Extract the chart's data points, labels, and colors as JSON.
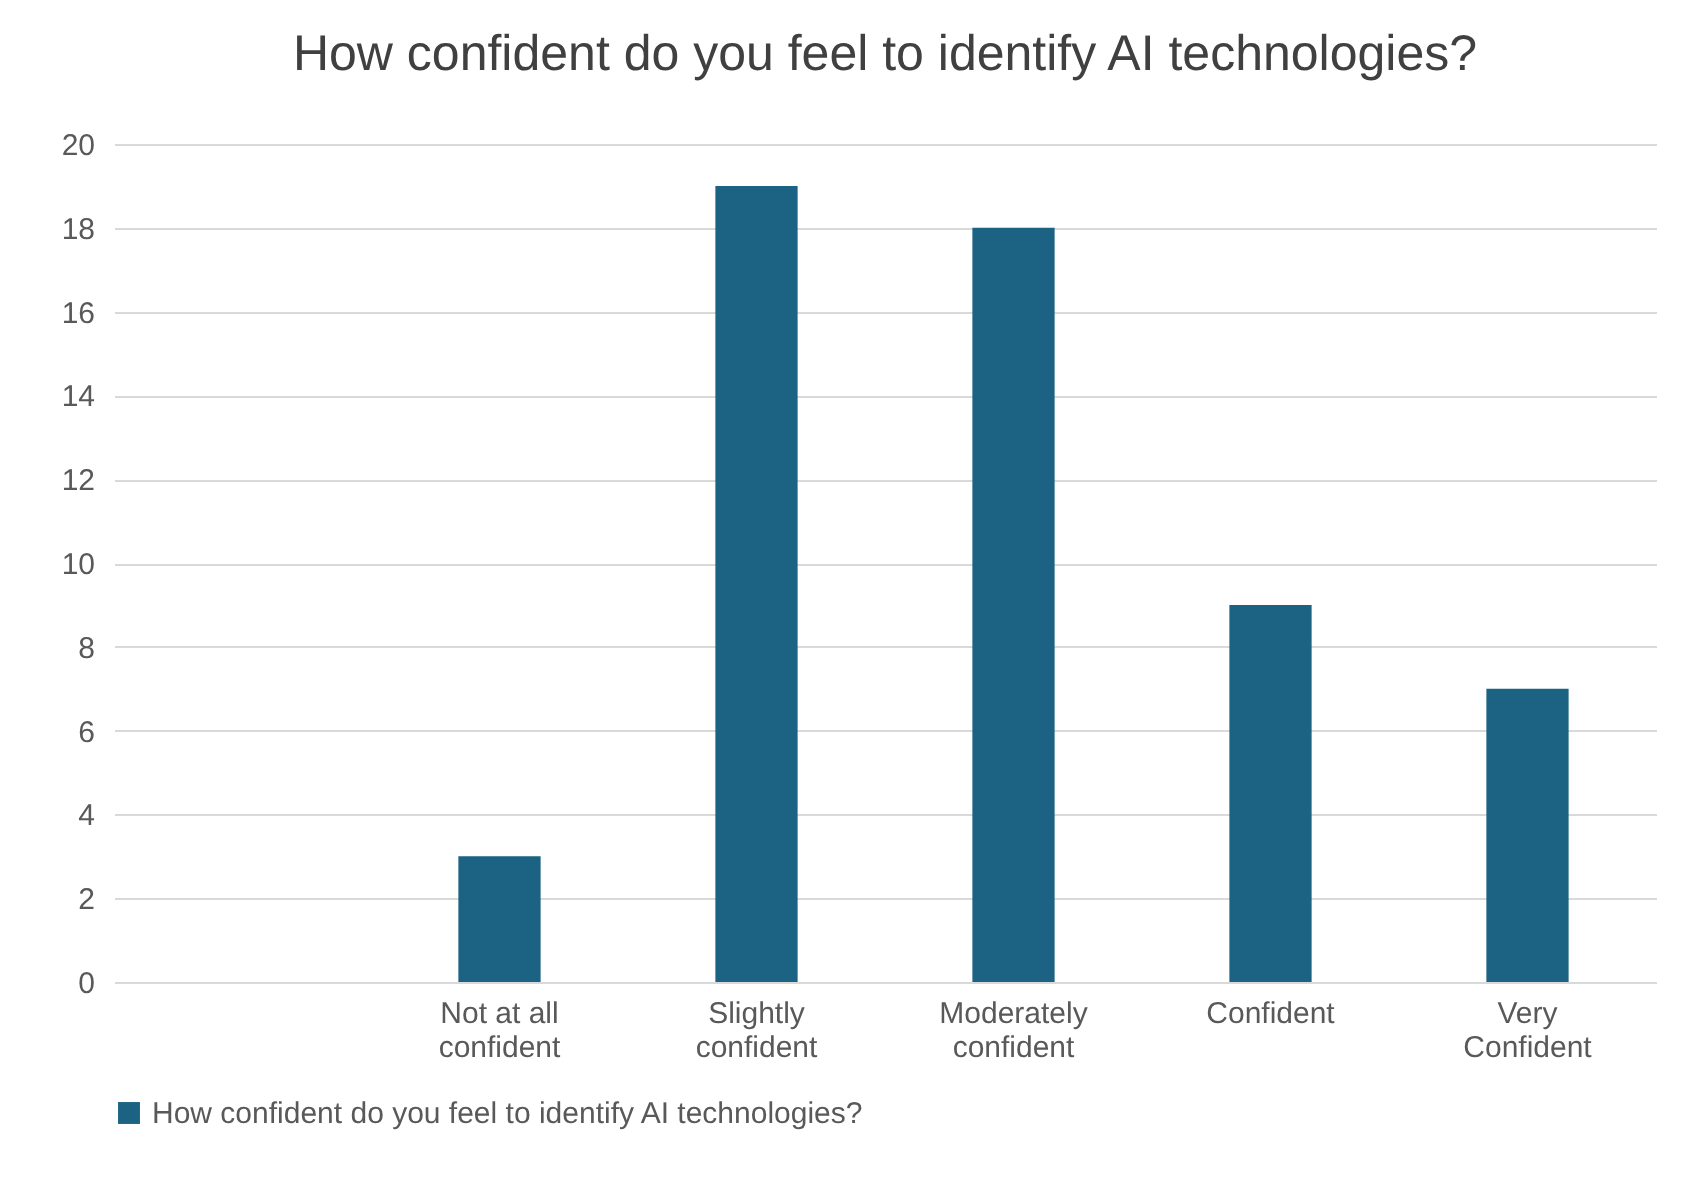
{
  "chart_data": {
    "type": "bar",
    "title": "How confident do you feel to identify AI technologies?",
    "categories": [
      null,
      "Not at all confident",
      "Slightly confident",
      "Moderately confident",
      "Confident",
      "Very Confident"
    ],
    "series": [
      {
        "name": "How confident do you feel to identify AI technologies?",
        "color": "#1b6283",
        "values": [
          null,
          3,
          19,
          18,
          9,
          7
        ]
      }
    ],
    "ylim": [
      0,
      20
    ],
    "yticks": [
      0,
      2,
      4,
      6,
      8,
      10,
      12,
      14,
      16,
      18,
      20
    ],
    "grid": "y",
    "legend": "bottom"
  }
}
